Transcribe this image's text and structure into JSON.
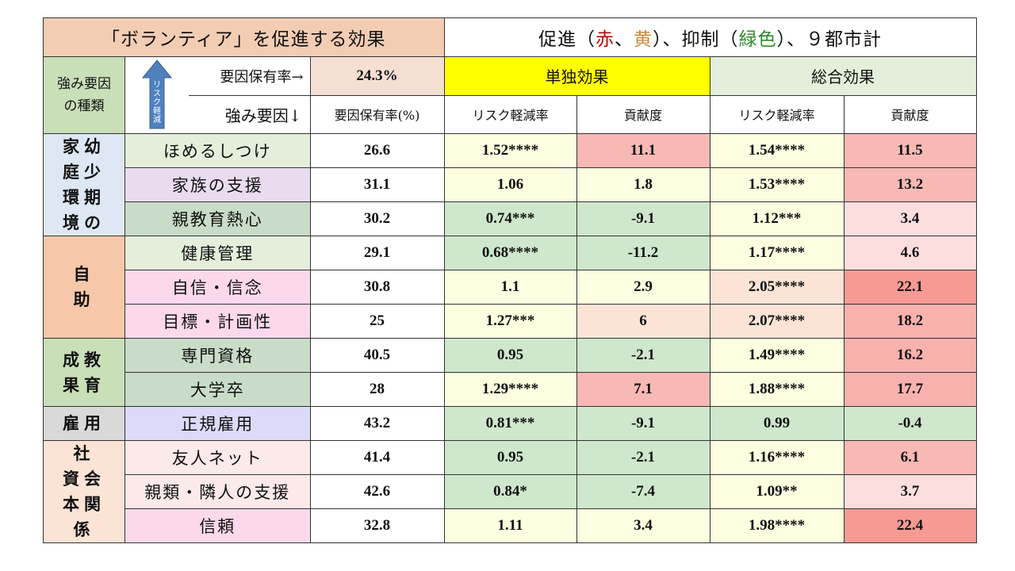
{
  "title_left": "「ボランティア」を促進する効果",
  "title_right": {
    "prefix": "促進（",
    "red": "赤",
    "sep": "、",
    "yellow": "黄",
    "mid": "）、抑制（",
    "green": "緑色",
    "suffix": "）、９都市計"
  },
  "header": {
    "category_head": [
      "強み要因",
      "の種類"
    ],
    "arrow_text": "リスク軽減",
    "rate_label": "要因保有率→",
    "rate_value": "24.3%",
    "single_effect": "単独効果",
    "total_effect": "総合効果",
    "strength_label": "強み要因↓",
    "holding_rate_col": "要因保有率(%)",
    "risk_reduction": "リスク軽減率",
    "contribution": "貢献度"
  },
  "colors": {
    "title_red": "#c00000",
    "title_yellow": "#c98a3a",
    "title_green": "#2e8b2e",
    "arrow": "#4f81bd"
  },
  "chart_data": {
    "type": "table",
    "columns": [
      "強み要因の種類",
      "強み要因",
      "要因保有率(%)",
      "単独効果 リスク軽減率",
      "単独効果 貢献度",
      "総合効果 リスク軽減率",
      "総合効果 貢献度"
    ],
    "groups": [
      {
        "category": [
          "家幼",
          "庭少",
          "環期",
          "境の"
        ],
        "category_bg": "#dde8f4",
        "rows": [
          {
            "factor": "ほめるしつけ",
            "factor_bg": "#e3efda",
            "rate": "26.6",
            "single_rr": "1.52****",
            "single_rr_bg": "#fdfde0",
            "single_c": "11.1",
            "single_c_bg": "#f8b9b5",
            "total_rr": "1.54****",
            "total_rr_bg": "#fdfde0",
            "total_c": "11.5",
            "total_c_bg": "#f8b9b5"
          },
          {
            "factor": "家族の支援",
            "factor_bg": "#eadcef",
            "rate": "31.1",
            "single_rr": "1.06",
            "single_rr_bg": "#fdfde0",
            "single_c": "1.8",
            "single_c_bg": "#fdfde0",
            "total_rr": "1.53****",
            "total_rr_bg": "#fdfde0",
            "total_c": "13.2",
            "total_c_bg": "#f8b9b5"
          },
          {
            "factor": "親教育熱心",
            "factor_bg": "#c9dcc8",
            "rate": "30.2",
            "single_rr": "0.74***",
            "single_rr_bg": "#cfe7cc",
            "single_c": "-9.1",
            "single_c_bg": "#cfe7cc",
            "total_rr": "1.12***",
            "total_rr_bg": "#fdfde0",
            "total_c": "3.4",
            "total_c_bg": "#fcdede"
          }
        ]
      },
      {
        "category": [
          "自",
          "助"
        ],
        "category_bg": "#f6c7a9",
        "rows": [
          {
            "factor": "健康管理",
            "factor_bg": "#e3efda",
            "rate": "29.1",
            "single_rr": "0.68****",
            "single_rr_bg": "#cfe7cc",
            "single_c": "-11.2",
            "single_c_bg": "#cfe7cc",
            "total_rr": "1.17****",
            "total_rr_bg": "#fdfde0",
            "total_c": "4.6",
            "total_c_bg": "#fcdede"
          },
          {
            "factor": "自信・信念",
            "factor_bg": "#fbd8ec",
            "rate": "30.8",
            "single_rr": "1.1",
            "single_rr_bg": "#fdfde0",
            "single_c": "2.9",
            "single_c_bg": "#fdfde0",
            "total_rr": "2.05****",
            "total_rr_bg": "#fbe4d6",
            "total_c": "22.1",
            "total_c_bg": "#f89a94"
          },
          {
            "factor": "目標・計画性",
            "factor_bg": "#fbd8ec",
            "rate": "25",
            "single_rr": "1.27***",
            "single_rr_bg": "#fdfde0",
            "single_c": "6",
            "single_c_bg": "#fbe4d6",
            "total_rr": "2.07****",
            "total_rr_bg": "#fbe4d6",
            "total_c": "18.2",
            "total_c_bg": "#f8b2ae"
          }
        ]
      },
      {
        "category": [
          "成教",
          "果育"
        ],
        "category_bg": "#c9dfb8",
        "rows": [
          {
            "factor": "専門資格",
            "factor_bg": "#c9dcc8",
            "rate": "40.5",
            "single_rr": "0.95",
            "single_rr_bg": "#cfe7cc",
            "single_c": "-2.1",
            "single_c_bg": "#cfe7cc",
            "total_rr": "1.49****",
            "total_rr_bg": "#fdfde0",
            "total_c": "16.2",
            "total_c_bg": "#f8b2ae"
          },
          {
            "factor": "大学卒",
            "factor_bg": "#c9dcc8",
            "rate": "28",
            "single_rr": "1.29****",
            "single_rr_bg": "#fdfde0",
            "single_c": "7.1",
            "single_c_bg": "#f8b9b5",
            "total_rr": "1.88****",
            "total_rr_bg": "#fdfde0",
            "total_c": "17.7",
            "total_c_bg": "#f8b2ae"
          }
        ]
      },
      {
        "category": [
          "雇用"
        ],
        "category_bg": "#d9d9d9",
        "rows": [
          {
            "factor": "正規雇用",
            "factor_bg": "#dbdaf8",
            "rate": "43.2",
            "single_rr": "0.81***",
            "single_rr_bg": "#cfe7cc",
            "single_c": "-9.1",
            "single_c_bg": "#cfe7cc",
            "total_rr": "0.99",
            "total_rr_bg": "#cfe7cc",
            "total_c": "-0.4",
            "total_c_bg": "#cfe7cc"
          }
        ]
      },
      {
        "category": [
          "社",
          "資会",
          "本関",
          "係"
        ],
        "category_bg": "#fbe4d6",
        "rows": [
          {
            "factor": "友人ネット",
            "factor_bg": "#fce9e9",
            "rate": "41.4",
            "single_rr": "0.95",
            "single_rr_bg": "#cfe7cc",
            "single_c": "-2.1",
            "single_c_bg": "#cfe7cc",
            "total_rr": "1.16****",
            "total_rr_bg": "#fdfde0",
            "total_c": "6.1",
            "total_c_bg": "#f8b9b5"
          },
          {
            "factor": "親類・隣人の支援",
            "factor_bg": "#fce9e9",
            "rate": "42.6",
            "single_rr": "0.84*",
            "single_rr_bg": "#cfe7cc",
            "single_c": "-7.4",
            "single_c_bg": "#cfe7cc",
            "total_rr": "1.09**",
            "total_rr_bg": "#fdfde0",
            "total_c": "3.7",
            "total_c_bg": "#fcdede"
          },
          {
            "factor": "信頼",
            "factor_bg": "#fbd8ec",
            "rate": "32.8",
            "single_rr": "1.11",
            "single_rr_bg": "#fdfde0",
            "single_c": "3.4",
            "single_c_bg": "#fdfde0",
            "total_rr": "1.98****",
            "total_rr_bg": "#fdfde0",
            "total_c": "22.4",
            "total_c_bg": "#f89a94"
          }
        ]
      }
    ]
  }
}
